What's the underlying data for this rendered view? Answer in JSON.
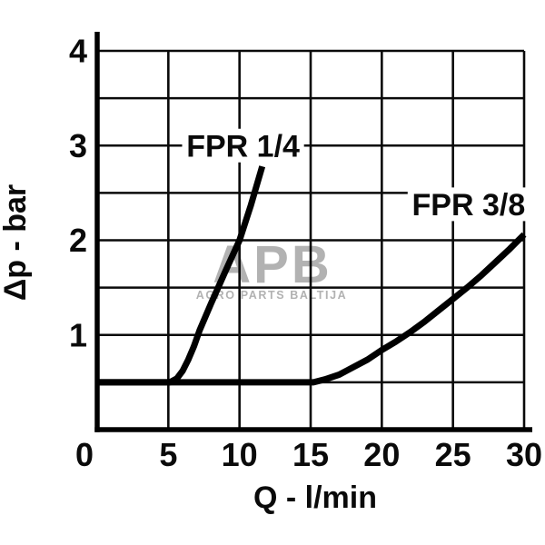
{
  "chart_data": {
    "type": "line",
    "title": "",
    "xlabel": "Q - l/min",
    "ylabel": "Δp - bar",
    "xlim": [
      0,
      30
    ],
    "ylim": [
      0,
      4
    ],
    "x_ticks": [
      0,
      5,
      10,
      15,
      20,
      25,
      30
    ],
    "y_ticks": [
      1,
      2,
      3,
      4
    ],
    "x_grid_step": 5,
    "y_grid_step": 0.5,
    "grid": true,
    "legend_position": "inline-labels",
    "line_color": "#000000",
    "series": [
      {
        "name": "FPR 1/4",
        "points": [
          [
            0,
            0.5
          ],
          [
            5.1,
            0.5
          ],
          [
            5.6,
            0.54
          ],
          [
            6.0,
            0.62
          ],
          [
            6.4,
            0.74
          ],
          [
            6.8,
            0.88
          ],
          [
            7.2,
            1.05
          ],
          [
            8,
            1.33
          ],
          [
            9,
            1.67
          ],
          [
            10,
            2.0
          ],
          [
            10.8,
            2.37
          ],
          [
            11.6,
            2.78
          ]
        ],
        "label_at": [
          10.25,
          3.0
        ]
      },
      {
        "name": "FPR 3/8",
        "points": [
          [
            0,
            0.5
          ],
          [
            15.2,
            0.5
          ],
          [
            16,
            0.53
          ],
          [
            17,
            0.58
          ],
          [
            18,
            0.66
          ],
          [
            19,
            0.74
          ],
          [
            20,
            0.84
          ],
          [
            21,
            0.93
          ],
          [
            22,
            1.03
          ],
          [
            23,
            1.14
          ],
          [
            24,
            1.26
          ],
          [
            25,
            1.38
          ],
          [
            26,
            1.5
          ],
          [
            27,
            1.63
          ],
          [
            28,
            1.77
          ],
          [
            29,
            1.91
          ],
          [
            30,
            2.06
          ]
        ],
        "label_at": [
          26.1,
          2.38
        ]
      }
    ]
  },
  "watermark": {
    "logo": "APB",
    "tagline": "AGRO PARTS BALTIJA",
    "color": "#b2b2b2"
  }
}
